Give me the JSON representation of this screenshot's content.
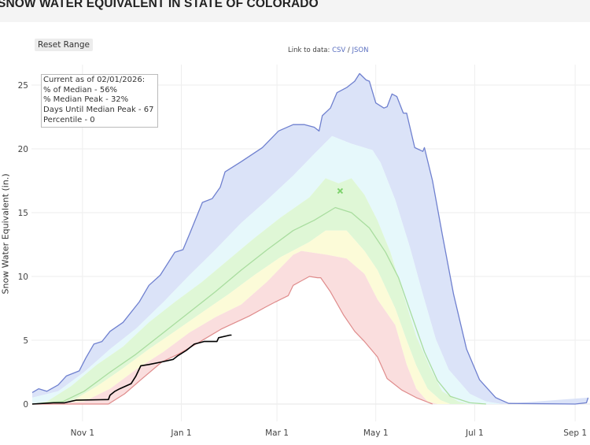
{
  "title": "SNOW WATER EQUIVALENT IN STATE OF COLORADO",
  "reset_button": "Reset Range",
  "link": {
    "prefix": "Link to data:",
    "csv": "CSV",
    "sep": "/",
    "json": "JSON"
  },
  "legend_box": {
    "lines": [
      "Current as of 02/01/2026:",
      "% of Median - 56%",
      "% Median Peak - 32%",
      "Days Until Median Peak - 67",
      "Percentile - 0"
    ]
  },
  "colors": {
    "max_line": "#6f80cf",
    "band_90_max": "#dbe3f8",
    "band_70_90": "#e6f8fb",
    "band_30_70": "#dff7d6",
    "band_10_30": "#fcfbd8",
    "band_min_10": "#fadede",
    "median_line": "#a9dd9f",
    "min_line": "#df8c8c",
    "current_line": "#000000",
    "median_peak_marker": "#7fd36e"
  },
  "chart_data": {
    "type": "area",
    "title": "SNOW WATER EQUIVALENT IN STATE OF COLORADO",
    "xlabel": "",
    "ylabel": "Snow Water Equivalent (in.)",
    "ylim": [
      0,
      27
    ],
    "xlim": [
      "2025-10-01",
      "2026-09-09"
    ],
    "yticks": [
      "0",
      "5",
      "10",
      "15",
      "20",
      "25"
    ],
    "ytick_values": [
      0,
      5,
      10,
      15,
      20,
      25
    ],
    "xticks": [
      {
        "date": "2025-11-01",
        "label": "Nov 1"
      },
      {
        "date": "2026-01-01",
        "label": "Jan 1"
      },
      {
        "date": "2026-03-01",
        "label": "Mar 1"
      },
      {
        "date": "2026-05-01",
        "label": "May 1"
      },
      {
        "date": "2026-07-01",
        "label": "Jul 1"
      },
      {
        "date": "2026-09-01",
        "label": "Sep 1"
      }
    ],
    "grid": true,
    "series": {
      "max": [
        [
          "2025-10-01",
          0.9
        ],
        [
          "2025-10-05",
          1.2
        ],
        [
          "2025-10-10",
          1.0
        ],
        [
          "2025-10-17",
          1.5
        ],
        [
          "2025-10-22",
          2.2
        ],
        [
          "2025-10-30",
          2.6
        ],
        [
          "2025-11-03",
          3.6
        ],
        [
          "2025-11-08",
          4.7
        ],
        [
          "2025-11-13",
          4.9
        ],
        [
          "2025-11-18",
          5.7
        ],
        [
          "2025-11-26",
          6.4
        ],
        [
          "2025-12-06",
          8.0
        ],
        [
          "2025-12-12",
          9.3
        ],
        [
          "2025-12-19",
          10.1
        ],
        [
          "2025-12-28",
          11.9
        ],
        [
          "2026-01-02",
          12.1
        ],
        [
          "2026-01-06",
          13.3
        ],
        [
          "2026-01-14",
          15.8
        ],
        [
          "2026-01-20",
          16.1
        ],
        [
          "2026-01-25",
          17.0
        ],
        [
          "2026-01-28",
          18.2
        ],
        [
          "2026-02-07",
          19.0
        ],
        [
          "2026-02-20",
          20.1
        ],
        [
          "2026-03-02",
          21.4
        ],
        [
          "2026-03-11",
          21.9
        ],
        [
          "2026-03-18",
          21.9
        ],
        [
          "2026-03-24",
          21.7
        ],
        [
          "2026-03-27",
          21.4
        ],
        [
          "2026-03-29",
          22.6
        ],
        [
          "2026-04-03",
          23.2
        ],
        [
          "2026-04-07",
          24.4
        ],
        [
          "2026-04-13",
          24.8
        ],
        [
          "2026-04-18",
          25.3
        ],
        [
          "2026-04-21",
          25.9
        ],
        [
          "2026-04-25",
          25.4
        ],
        [
          "2026-04-27",
          25.3
        ],
        [
          "2026-05-01",
          23.6
        ],
        [
          "2026-05-06",
          23.2
        ],
        [
          "2026-05-08",
          23.3
        ],
        [
          "2026-05-11",
          24.3
        ],
        [
          "2026-05-14",
          24.1
        ],
        [
          "2026-05-18",
          22.8
        ],
        [
          "2026-05-20",
          22.8
        ],
        [
          "2026-05-25",
          20.1
        ],
        [
          "2026-05-30",
          19.8
        ],
        [
          "2026-05-31",
          20.1
        ],
        [
          "2026-06-05",
          17.5
        ],
        [
          "2026-06-11",
          13.3
        ],
        [
          "2026-06-18",
          8.6
        ],
        [
          "2026-06-26",
          4.3
        ],
        [
          "2026-07-04",
          1.9
        ],
        [
          "2026-07-14",
          0.5
        ],
        [
          "2026-07-22",
          0.05
        ],
        [
          "2026-09-01",
          0.0
        ],
        [
          "2026-09-08",
          0.1
        ],
        [
          "2026-09-09",
          0.5
        ]
      ],
      "p90": [
        [
          "2025-10-01",
          0.5
        ],
        [
          "2025-10-17",
          1.0
        ],
        [
          "2025-11-02",
          2.5
        ],
        [
          "2025-11-18",
          4.3
        ],
        [
          "2025-12-04",
          5.9
        ],
        [
          "2025-12-21",
          8.0
        ],
        [
          "2026-01-06",
          10.1
        ],
        [
          "2026-01-22",
          12.1
        ],
        [
          "2026-02-07",
          14.2
        ],
        [
          "2026-02-23",
          16.0
        ],
        [
          "2026-03-11",
          17.9
        ],
        [
          "2026-03-24",
          19.6
        ],
        [
          "2026-04-04",
          21.0
        ],
        [
          "2026-04-16",
          20.4
        ],
        [
          "2026-04-29",
          19.9
        ],
        [
          "2026-05-04",
          18.9
        ],
        [
          "2026-05-13",
          16.0
        ],
        [
          "2026-05-22",
          12.3
        ],
        [
          "2026-05-30",
          8.6
        ],
        [
          "2026-06-07",
          5.1
        ],
        [
          "2026-06-15",
          2.7
        ],
        [
          "2026-06-28",
          0.8
        ],
        [
          "2026-07-08",
          0.2
        ],
        [
          "2026-07-18",
          0.0
        ]
      ],
      "p70": [
        [
          "2025-10-01",
          0.0
        ],
        [
          "2025-10-10",
          0.2
        ],
        [
          "2025-10-25",
          1.4
        ],
        [
          "2025-11-10",
          3.1
        ],
        [
          "2025-11-26",
          4.5
        ],
        [
          "2025-12-12",
          6.4
        ],
        [
          "2025-12-28",
          8.0
        ],
        [
          "2026-01-14",
          9.6
        ],
        [
          "2026-01-30",
          11.3
        ],
        [
          "2026-02-15",
          13.0
        ],
        [
          "2026-03-03",
          14.6
        ],
        [
          "2026-03-21",
          16.2
        ],
        [
          "2026-03-31",
          17.7
        ],
        [
          "2026-04-08",
          17.3
        ],
        [
          "2026-04-16",
          17.7
        ],
        [
          "2026-04-24",
          16.4
        ],
        [
          "2026-05-02",
          14.4
        ],
        [
          "2026-05-10",
          11.9
        ],
        [
          "2026-05-18",
          8.6
        ],
        [
          "2026-05-26",
          5.3
        ],
        [
          "2026-06-04",
          2.7
        ],
        [
          "2026-06-11",
          1.0
        ],
        [
          "2026-06-21",
          0.2
        ],
        [
          "2026-06-28",
          0.0
        ]
      ],
      "median": [
        [
          "2025-10-01",
          0.0
        ],
        [
          "2025-10-20",
          0.2
        ],
        [
          "2025-11-02",
          1.0
        ],
        [
          "2025-11-18",
          2.5
        ],
        [
          "2025-12-04",
          3.9
        ],
        [
          "2025-12-21",
          5.6
        ],
        [
          "2026-01-06",
          7.2
        ],
        [
          "2026-01-22",
          8.8
        ],
        [
          "2026-02-07",
          10.5
        ],
        [
          "2026-02-23",
          12.1
        ],
        [
          "2026-03-11",
          13.6
        ],
        [
          "2026-03-24",
          14.4
        ],
        [
          "2026-04-06",
          15.4
        ],
        [
          "2026-04-16",
          15.0
        ],
        [
          "2026-04-27",
          13.8
        ],
        [
          "2026-05-07",
          11.9
        ],
        [
          "2026-05-15",
          9.9
        ],
        [
          "2026-05-23",
          7.0
        ],
        [
          "2026-05-31",
          4.1
        ],
        [
          "2026-06-08",
          1.85
        ],
        [
          "2026-06-16",
          0.6
        ],
        [
          "2026-06-28",
          0.1
        ],
        [
          "2026-07-08",
          0.0
        ]
      ],
      "p30": [
        [
          "2025-10-01",
          0.0
        ],
        [
          "2025-10-25",
          0.2
        ],
        [
          "2025-11-10",
          1.4
        ],
        [
          "2025-11-26",
          2.8
        ],
        [
          "2025-12-12",
          4.3
        ],
        [
          "2025-12-28",
          5.7
        ],
        [
          "2026-01-14",
          7.2
        ],
        [
          "2026-01-30",
          8.6
        ],
        [
          "2026-02-15",
          10.1
        ],
        [
          "2026-03-03",
          11.5
        ],
        [
          "2026-03-21",
          12.7
        ],
        [
          "2026-03-31",
          13.6
        ],
        [
          "2026-04-13",
          13.6
        ],
        [
          "2026-04-24",
          12.0
        ],
        [
          "2026-05-02",
          10.5
        ],
        [
          "2026-05-13",
          7.5
        ],
        [
          "2026-05-20",
          5.0
        ],
        [
          "2026-05-26",
          3.0
        ],
        [
          "2026-06-02",
          1.2
        ],
        [
          "2026-06-10",
          0.3
        ],
        [
          "2026-06-16",
          0.0
        ]
      ],
      "p10": [
        [
          "2025-10-01",
          0.0
        ],
        [
          "2025-11-02",
          0.2
        ],
        [
          "2025-11-18",
          1.2
        ],
        [
          "2025-12-04",
          2.7
        ],
        [
          "2025-12-21",
          4.1
        ],
        [
          "2026-01-06",
          5.6
        ],
        [
          "2026-01-22",
          6.8
        ],
        [
          "2026-02-07",
          7.8
        ],
        [
          "2026-02-23",
          9.6
        ],
        [
          "2026-03-11",
          11.7
        ],
        [
          "2026-03-16",
          12.0
        ],
        [
          "2026-04-01",
          11.7
        ],
        [
          "2026-04-13",
          11.4
        ],
        [
          "2026-04-24",
          10.2
        ],
        [
          "2026-05-02",
          8.2
        ],
        [
          "2026-05-13",
          6.2
        ],
        [
          "2026-05-20",
          3.1
        ],
        [
          "2026-05-26",
          1.2
        ],
        [
          "2026-06-02",
          0.2
        ],
        [
          "2026-06-08",
          0.0
        ]
      ],
      "min": [
        [
          "2025-10-01",
          0.0
        ],
        [
          "2025-11-17",
          0.0
        ],
        [
          "2025-11-27",
          0.8
        ],
        [
          "2025-12-07",
          1.9
        ],
        [
          "2025-12-20",
          3.3
        ],
        [
          "2025-12-30",
          3.9
        ],
        [
          "2026-01-10",
          4.7
        ],
        [
          "2026-01-26",
          5.9
        ],
        [
          "2026-02-12",
          6.9
        ],
        [
          "2026-02-22",
          7.6
        ],
        [
          "2026-02-28",
          8.0
        ],
        [
          "2026-03-08",
          8.5
        ],
        [
          "2026-03-11",
          9.3
        ],
        [
          "2026-03-21",
          10.0
        ],
        [
          "2026-03-26",
          9.9
        ],
        [
          "2026-03-28",
          9.9
        ],
        [
          "2026-04-03",
          8.8
        ],
        [
          "2026-04-11",
          7.0
        ],
        [
          "2026-04-18",
          5.7
        ],
        [
          "2026-04-24",
          4.9
        ],
        [
          "2026-05-02",
          3.7
        ],
        [
          "2026-05-08",
          2.0
        ],
        [
          "2026-05-17",
          1.1
        ],
        [
          "2026-05-26",
          0.5
        ],
        [
          "2026-06-05",
          0.0
        ]
      ],
      "current": [
        [
          "2025-10-01",
          0.0
        ],
        [
          "2025-10-14",
          0.1
        ],
        [
          "2025-10-21",
          0.1
        ],
        [
          "2025-10-28",
          0.3
        ],
        [
          "2025-11-17",
          0.35
        ],
        [
          "2025-11-18",
          0.7
        ],
        [
          "2025-11-21",
          1.0
        ],
        [
          "2025-11-24",
          1.2
        ],
        [
          "2025-12-01",
          1.6
        ],
        [
          "2025-12-04",
          2.2
        ],
        [
          "2025-12-07",
          3.0
        ],
        [
          "2025-12-12",
          3.1
        ],
        [
          "2025-12-20",
          3.3
        ],
        [
          "2025-12-27",
          3.5
        ],
        [
          "2025-12-30",
          3.8
        ],
        [
          "2026-01-04",
          4.2
        ],
        [
          "2026-01-09",
          4.7
        ],
        [
          "2026-01-15",
          4.9
        ],
        [
          "2026-01-23",
          4.9
        ],
        [
          "2026-01-24",
          5.2
        ],
        [
          "2026-01-31",
          5.4
        ],
        [
          "2026-02-01",
          5.4
        ]
      ]
    },
    "median_peak": {
      "date": "2026-04-09",
      "value": 16.7
    }
  }
}
